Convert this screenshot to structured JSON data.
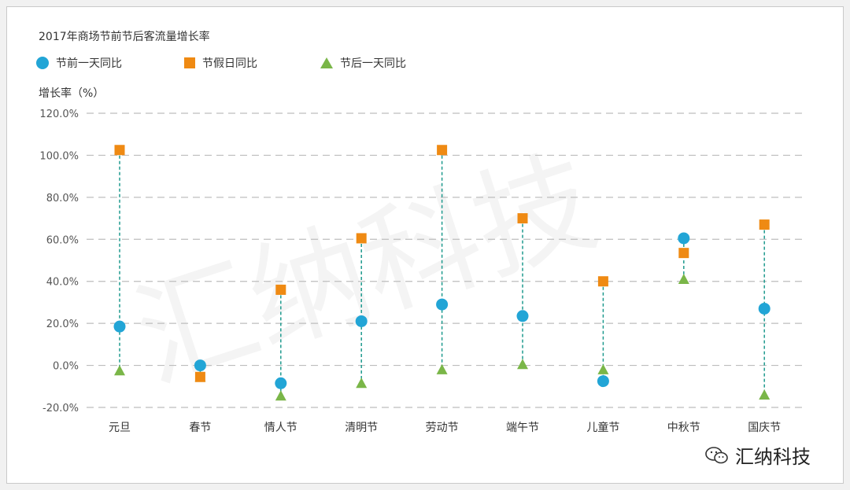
{
  "chart_data": {
    "type": "scatter",
    "title": "2017年商场节前节后客流量增长率",
    "ylabel": "增长率（%）",
    "categories": [
      "元旦",
      "春节",
      "情人节",
      "清明节",
      "劳动节",
      "端午节",
      "儿童节",
      "中秋节",
      "国庆节"
    ],
    "series": [
      {
        "name": "节前一天同比",
        "marker": "circle",
        "color": "#22a5d6",
        "values": [
          18.5,
          0,
          -8.5,
          21,
          29,
          23.5,
          -7.5,
          60.5,
          27
        ]
      },
      {
        "name": "节假日同比",
        "marker": "square",
        "color": "#ef8a13",
        "values": [
          102.5,
          -5.5,
          36,
          60.5,
          102.5,
          70,
          40,
          53.5,
          67
        ]
      },
      {
        "name": "节后一天同比",
        "marker": "triangle",
        "color": "#7ab648",
        "values": [
          -2.5,
          -5.5,
          -14.5,
          -8.5,
          -2,
          0.5,
          -2,
          41,
          -14
        ]
      }
    ],
    "ylim": [
      -20,
      120
    ],
    "yticks": [
      120,
      100,
      80,
      60,
      40,
      20,
      0,
      -20
    ],
    "ytick_labels": [
      "120.0%",
      "100.0%",
      "80.0%",
      "60.0%",
      "40.0%",
      "20.0%",
      "0.0%",
      "-20.0%"
    ],
    "grid": true,
    "gridline_color": "#bdbdbd",
    "connector_color": "#1e9a8e",
    "legend_position": "top-left"
  },
  "watermark": {
    "text": "汇纳科技",
    "badge_text": "汇纳科技",
    "badge_icon": "wechat-icon"
  }
}
